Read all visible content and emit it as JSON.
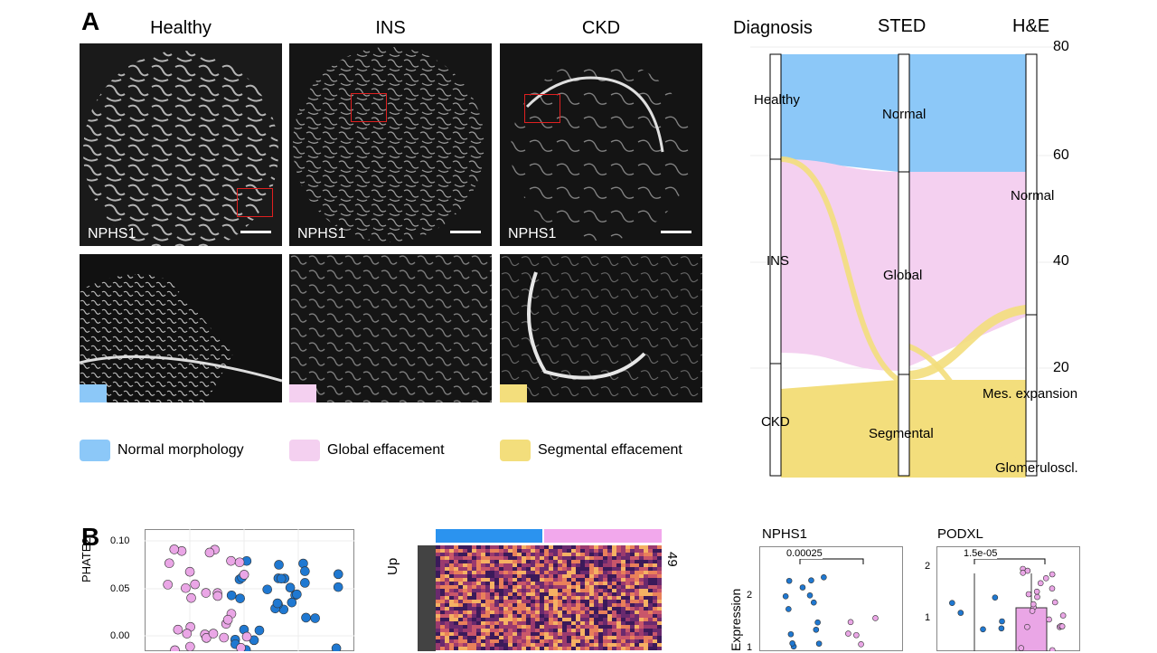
{
  "panel_a": {
    "letter": "A",
    "columns": [
      "Healthy",
      "INS",
      "CKD"
    ],
    "stain_label": "NPHS1",
    "legend": [
      {
        "label": "Normal morphology",
        "color": "#8cc8f8"
      },
      {
        "label": "Global effacement",
        "color": "#f4d0f0"
      },
      {
        "label": "Segmental effacement",
        "color": "#f3de7c"
      }
    ]
  },
  "sankey": {
    "axis_titles": [
      "Diagnosis",
      "STED",
      "H&E"
    ],
    "diagnosis_nodes": [
      "Healthy",
      "INS",
      "CKD"
    ],
    "sted_nodes": [
      "Normal",
      "Global",
      "Segmental"
    ],
    "he_nodes": [
      "Normal",
      "Mes. expansion",
      "Glomeruloscl."
    ],
    "y_ticks": [
      "80",
      "60",
      "40",
      "20"
    ],
    "colors": {
      "normal": "#8cc8f8",
      "global": "#f4d0f0",
      "segmental": "#f3de7c"
    }
  },
  "panel_b": {
    "letter": "B",
    "scatter": {
      "ylabel": "PHATE2",
      "yticks": [
        "0.10",
        "0.05",
        "0.00"
      ],
      "colors": {
        "group1": "#1f78d1",
        "group2": "#eaa6e6"
      }
    },
    "heatmap": {
      "row_label": "Up",
      "count": "49",
      "bar_colors": [
        "#2b93ef",
        "#f2a8ec"
      ]
    },
    "boxplots": [
      {
        "title": "NPHS1",
        "pvalue": "0.00025",
        "yticks": [
          "2",
          "1"
        ]
      },
      {
        "title": "PODXL",
        "pvalue": "1.5e-05",
        "yticks": [
          "2",
          "1"
        ]
      }
    ],
    "box_ylabel": "Expression"
  }
}
